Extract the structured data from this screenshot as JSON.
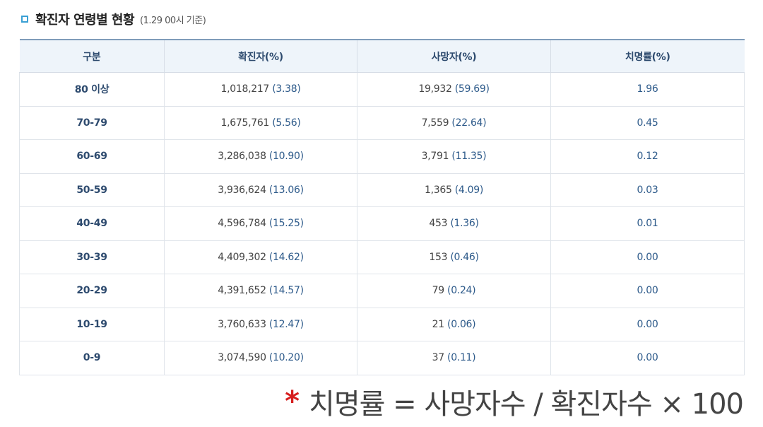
{
  "heading": {
    "title": "확진자 연령별 현황",
    "subtitle": "(1.29 00시 기준)"
  },
  "table": {
    "headers": [
      "구분",
      "확진자(%)",
      "사망자(%)",
      "치명률(%)"
    ],
    "rows": [
      {
        "age": "80 이상",
        "cases": "1,018,217",
        "cases_pct": "(3.38)",
        "deaths": "19,932",
        "deaths_pct": "(59.69)",
        "fatality": "1.96"
      },
      {
        "age": "70-79",
        "cases": "1,675,761",
        "cases_pct": "(5.56)",
        "deaths": "7,559",
        "deaths_pct": "(22.64)",
        "fatality": "0.45"
      },
      {
        "age": "60-69",
        "cases": "3,286,038",
        "cases_pct": "(10.90)",
        "deaths": "3,791",
        "deaths_pct": "(11.35)",
        "fatality": "0.12"
      },
      {
        "age": "50-59",
        "cases": "3,936,624",
        "cases_pct": "(13.06)",
        "deaths": "1,365",
        "deaths_pct": "(4.09)",
        "fatality": "0.03"
      },
      {
        "age": "40-49",
        "cases": "4,596,784",
        "cases_pct": "(15.25)",
        "deaths": "453",
        "deaths_pct": "(1.36)",
        "fatality": "0.01"
      },
      {
        "age": "30-39",
        "cases": "4,409,302",
        "cases_pct": "(14.62)",
        "deaths": "153",
        "deaths_pct": "(0.46)",
        "fatality": "0.00"
      },
      {
        "age": "20-29",
        "cases": "4,391,652",
        "cases_pct": "(14.57)",
        "deaths": "79",
        "deaths_pct": "(0.24)",
        "fatality": "0.00"
      },
      {
        "age": "10-19",
        "cases": "3,760,633",
        "cases_pct": "(12.47)",
        "deaths": "21",
        "deaths_pct": "(0.06)",
        "fatality": "0.00"
      },
      {
        "age": "0-9",
        "cases": "3,074,590",
        "cases_pct": "(10.20)",
        "deaths": "37",
        "deaths_pct": "(0.11)",
        "fatality": "0.00"
      }
    ]
  },
  "footnote": {
    "marker": "*",
    "text": "치명률 = 사망자수 / 확진자수 × 100"
  },
  "colors": {
    "accent": "#3aa0d4",
    "header_bg": "#eef4fa",
    "header_text": "#2d4a6e",
    "percent_text": "#2d5a8a",
    "marker": "#d61f1f"
  }
}
